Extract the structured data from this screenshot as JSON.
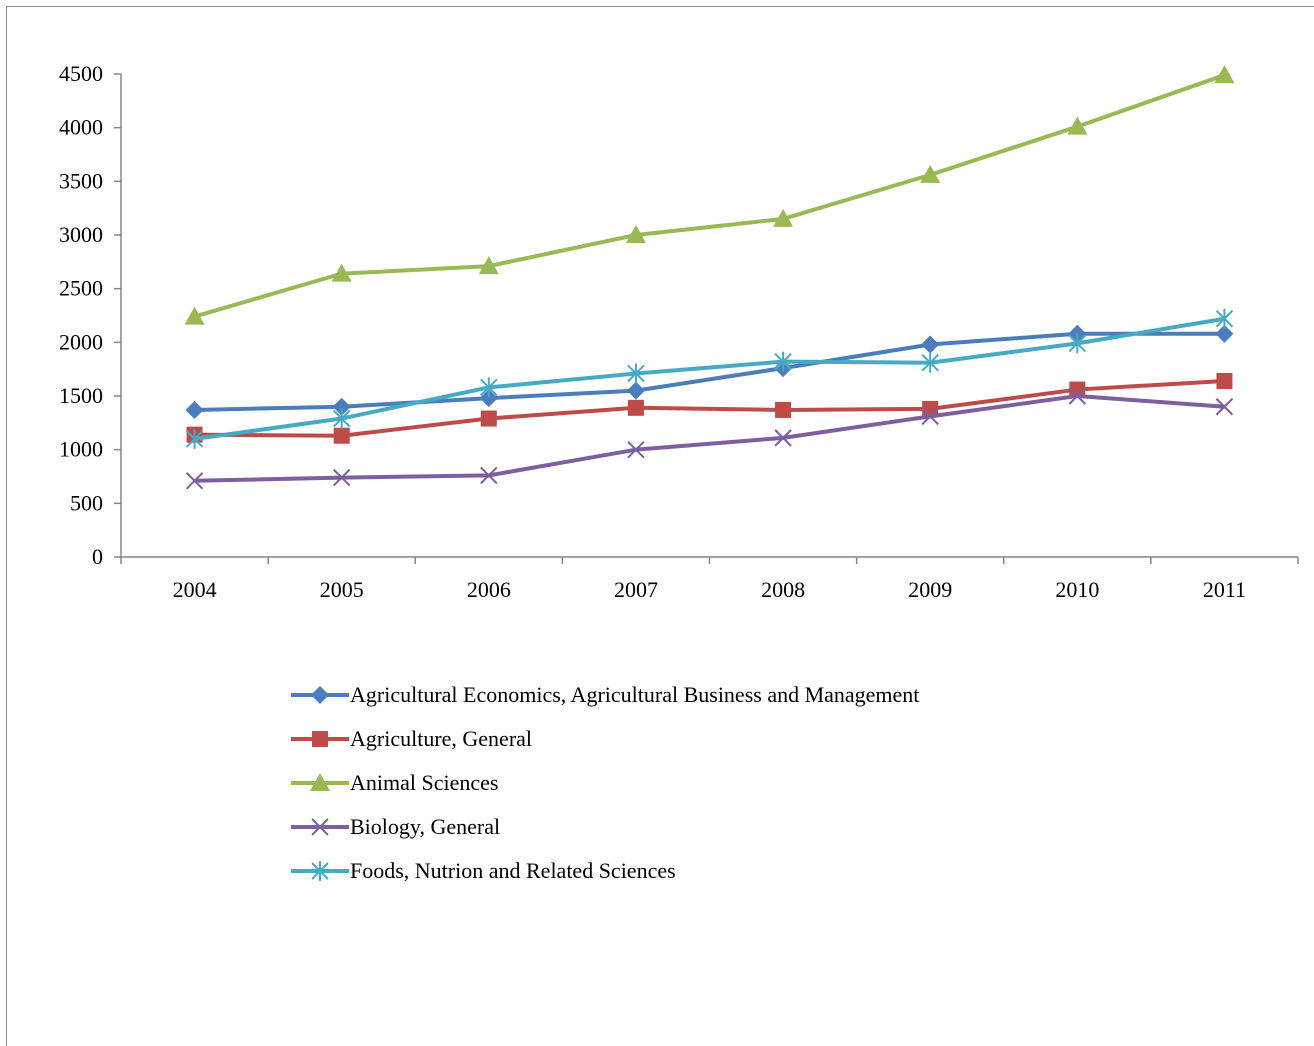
{
  "chart_data": {
    "type": "line",
    "title": "",
    "xlabel": "",
    "ylabel": "",
    "x": [
      "2004",
      "2005",
      "2006",
      "2007",
      "2008",
      "2009",
      "2010",
      "2011"
    ],
    "ylim": [
      0,
      4500
    ],
    "yticks": [
      0,
      500,
      1000,
      1500,
      2000,
      2500,
      3000,
      3500,
      4000,
      4500
    ],
    "grid": false,
    "legend_position": "bottom",
    "series": [
      {
        "name": "Agricultural Economics, Agricultural Business and Management",
        "color": "#4A7EBB",
        "marker": "diamond",
        "values": [
          1370,
          1400,
          1480,
          1550,
          1760,
          1980,
          2080,
          2080
        ]
      },
      {
        "name": "Agriculture, General",
        "color": "#BE4B48",
        "marker": "square",
        "values": [
          1140,
          1130,
          1290,
          1390,
          1370,
          1380,
          1560,
          1640
        ]
      },
      {
        "name": "Animal Sciences",
        "color": "#98B954",
        "marker": "triangle",
        "values": [
          2240,
          2640,
          2710,
          3000,
          3150,
          3560,
          4010,
          4490
        ]
      },
      {
        "name": "Biology, General",
        "color": "#7D5FA0",
        "marker": "x",
        "values": [
          710,
          740,
          760,
          1000,
          1110,
          1310,
          1500,
          1400
        ]
      },
      {
        "name": "Foods, Nutrion and Related Sciences",
        "color": "#46AAC5",
        "marker": "star",
        "values": [
          1100,
          1290,
          1580,
          1710,
          1820,
          1810,
          1990,
          2220
        ]
      }
    ]
  }
}
